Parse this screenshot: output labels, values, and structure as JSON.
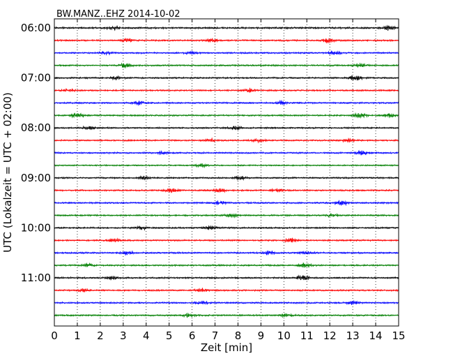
{
  "chart_data": {
    "type": "line",
    "title": "BW.MANZ..EHZ 2014-10-02",
    "xlabel": "Zeit  [min]",
    "ylabel": "UTC (Lokalzeit = UTC + 02:00)",
    "xlim": [
      0,
      15
    ],
    "x_ticks": [
      0,
      1,
      2,
      3,
      4,
      5,
      6,
      7,
      8,
      9,
      10,
      11,
      12,
      13,
      14,
      15
    ],
    "x_tick_labels": [
      "0",
      "1",
      "2",
      "3",
      "4",
      "5",
      "6",
      "7",
      "8",
      "9",
      "10",
      "11",
      "12",
      "13",
      "14",
      "15"
    ],
    "y_tick_labels": [
      "06:00",
      "07:00",
      "08:00",
      "09:00",
      "10:00",
      "11:00"
    ],
    "y_tick_rows": [
      0,
      4,
      8,
      12,
      16,
      20
    ],
    "minutes_per_row": 15,
    "row_count": 24,
    "row_colors": [
      "#000000",
      "#ff0000",
      "#0000ff",
      "#007f00"
    ],
    "grid": "vertical dotted lines at each minute",
    "series": [
      {
        "start": "06:00",
        "amplitude": 0.35,
        "bursts": [
          [
            2.6,
            0.6
          ],
          [
            14.6,
            0.9
          ]
        ]
      },
      {
        "start": "06:15",
        "amplitude": 0.3,
        "bursts": [
          [
            3.2,
            0.7
          ],
          [
            6.9,
            0.5
          ],
          [
            11.9,
            0.8
          ]
        ]
      },
      {
        "start": "06:30",
        "amplitude": 0.3,
        "bursts": [
          [
            2.3,
            0.7
          ],
          [
            6.0,
            0.5
          ],
          [
            12.2,
            0.6
          ]
        ]
      },
      {
        "start": "06:45",
        "amplitude": 0.3,
        "bursts": [
          [
            3.1,
            0.8
          ],
          [
            13.3,
            0.7
          ]
        ]
      },
      {
        "start": "07:00",
        "amplitude": 0.3,
        "bursts": [
          [
            2.7,
            0.6
          ],
          [
            13.1,
            0.9
          ]
        ]
      },
      {
        "start": "07:15",
        "amplitude": 0.3,
        "bursts": [
          [
            0.6,
            0.5
          ],
          [
            8.5,
            0.7
          ]
        ]
      },
      {
        "start": "07:30",
        "amplitude": 0.3,
        "bursts": [
          [
            3.7,
            0.7
          ],
          [
            9.9,
            0.6
          ]
        ]
      },
      {
        "start": "07:45",
        "amplitude": 0.3,
        "bursts": [
          [
            1.0,
            0.9
          ],
          [
            13.3,
            0.8
          ],
          [
            14.6,
            0.6
          ]
        ]
      },
      {
        "start": "08:00",
        "amplitude": 0.3,
        "bursts": [
          [
            1.5,
            0.6
          ],
          [
            7.9,
            0.8
          ]
        ]
      },
      {
        "start": "08:15",
        "amplitude": 0.3,
        "bursts": [
          [
            6.8,
            0.7
          ],
          [
            8.9,
            0.5
          ],
          [
            12.8,
            0.6
          ]
        ]
      },
      {
        "start": "08:30",
        "amplitude": 0.3,
        "bursts": [
          [
            4.8,
            0.6
          ],
          [
            13.4,
            0.8
          ]
        ]
      },
      {
        "start": "08:45",
        "amplitude": 0.25,
        "bursts": [
          [
            6.4,
            0.6
          ]
        ]
      },
      {
        "start": "09:00",
        "amplitude": 0.3,
        "bursts": [
          [
            3.9,
            0.6
          ],
          [
            8.1,
            0.6
          ]
        ]
      },
      {
        "start": "09:15",
        "amplitude": 0.3,
        "bursts": [
          [
            5.1,
            0.8
          ],
          [
            7.2,
            0.7
          ],
          [
            9.7,
            0.5
          ]
        ]
      },
      {
        "start": "09:30",
        "amplitude": 0.3,
        "bursts": [
          [
            7.2,
            0.6
          ],
          [
            12.5,
            0.9
          ]
        ]
      },
      {
        "start": "09:45",
        "amplitude": 0.3,
        "bursts": [
          [
            7.7,
            0.7
          ],
          [
            12.1,
            0.6
          ]
        ]
      },
      {
        "start": "10:00",
        "amplitude": 0.3,
        "bursts": [
          [
            3.8,
            0.6
          ],
          [
            6.8,
            0.6
          ]
        ]
      },
      {
        "start": "10:15",
        "amplitude": 0.3,
        "bursts": [
          [
            2.6,
            0.6
          ],
          [
            10.3,
            0.7
          ]
        ]
      },
      {
        "start": "10:30",
        "amplitude": 0.3,
        "bursts": [
          [
            3.2,
            0.6
          ],
          [
            9.4,
            0.9
          ],
          [
            11.0,
            0.6
          ]
        ]
      },
      {
        "start": "10:45",
        "amplitude": 0.3,
        "bursts": [
          [
            1.5,
            0.6
          ],
          [
            10.9,
            0.7
          ]
        ]
      },
      {
        "start": "11:00",
        "amplitude": 0.3,
        "bursts": [
          [
            2.5,
            0.6
          ],
          [
            10.8,
            0.9
          ]
        ]
      },
      {
        "start": "11:15",
        "amplitude": 0.3,
        "bursts": [
          [
            1.2,
            0.6
          ],
          [
            6.4,
            0.6
          ]
        ]
      },
      {
        "start": "11:30",
        "amplitude": 0.3,
        "bursts": [
          [
            6.4,
            0.6
          ],
          [
            13.0,
            0.6
          ]
        ]
      },
      {
        "start": "11:45",
        "amplitude": 0.3,
        "bursts": [
          [
            5.8,
            0.6
          ],
          [
            10.1,
            0.6
          ]
        ]
      }
    ]
  }
}
